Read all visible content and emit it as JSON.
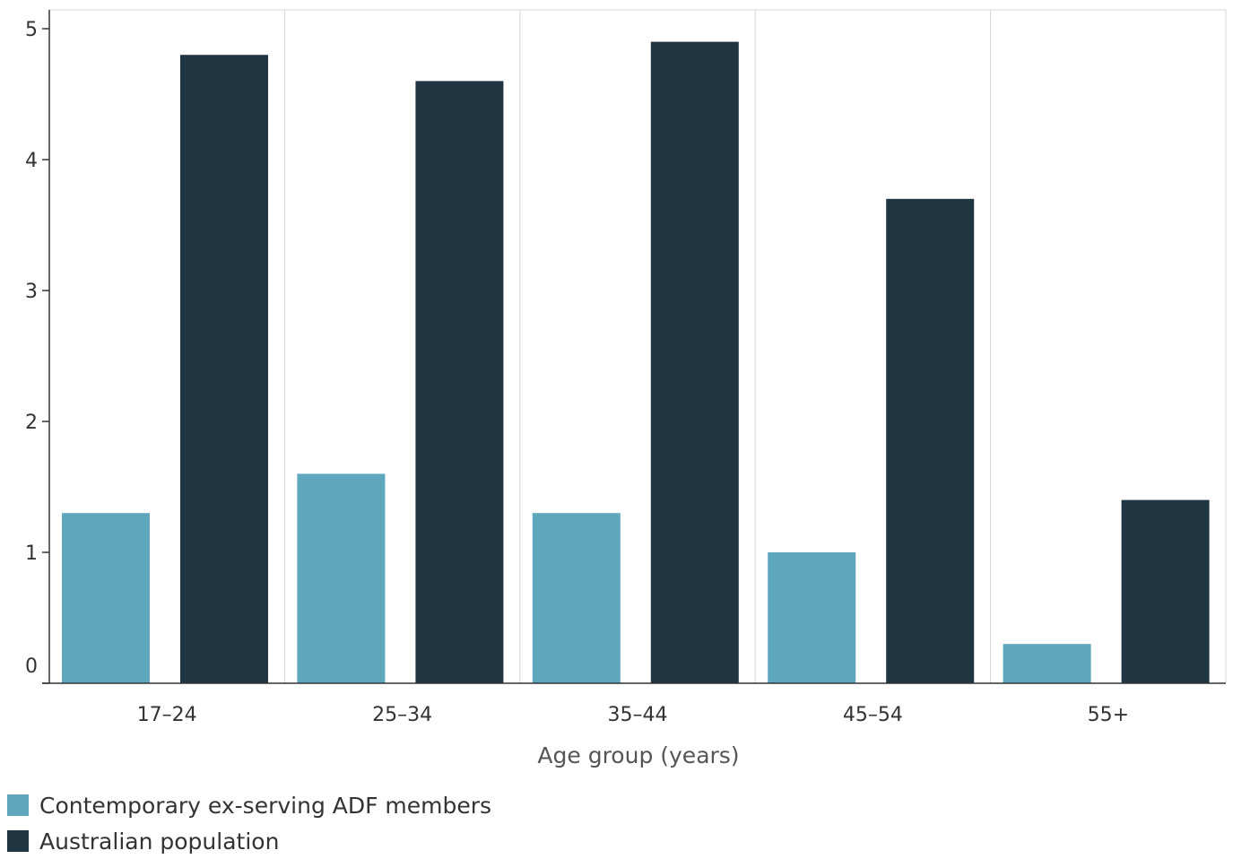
{
  "chart_data": {
    "type": "bar",
    "categories": [
      "17–24",
      "25–34",
      "35–44",
      "45–54",
      "55+"
    ],
    "series": [
      {
        "name": "Contemporary ex-serving ADF members",
        "color": "#5fa7bd",
        "values": [
          1.3,
          1.6,
          1.3,
          1.0,
          0.3
        ]
      },
      {
        "name": "Australian population",
        "color": "#203542",
        "values": [
          4.8,
          4.6,
          4.9,
          3.7,
          1.4
        ]
      }
    ],
    "title": "",
    "xlabel": "Age group (years)",
    "ylabel": "",
    "ylim": [
      0,
      5
    ],
    "yticks": [
      "0",
      "1",
      "2",
      "3",
      "4",
      "5"
    ],
    "grid": "vertical category separators",
    "legend_position": "bottom-left"
  }
}
